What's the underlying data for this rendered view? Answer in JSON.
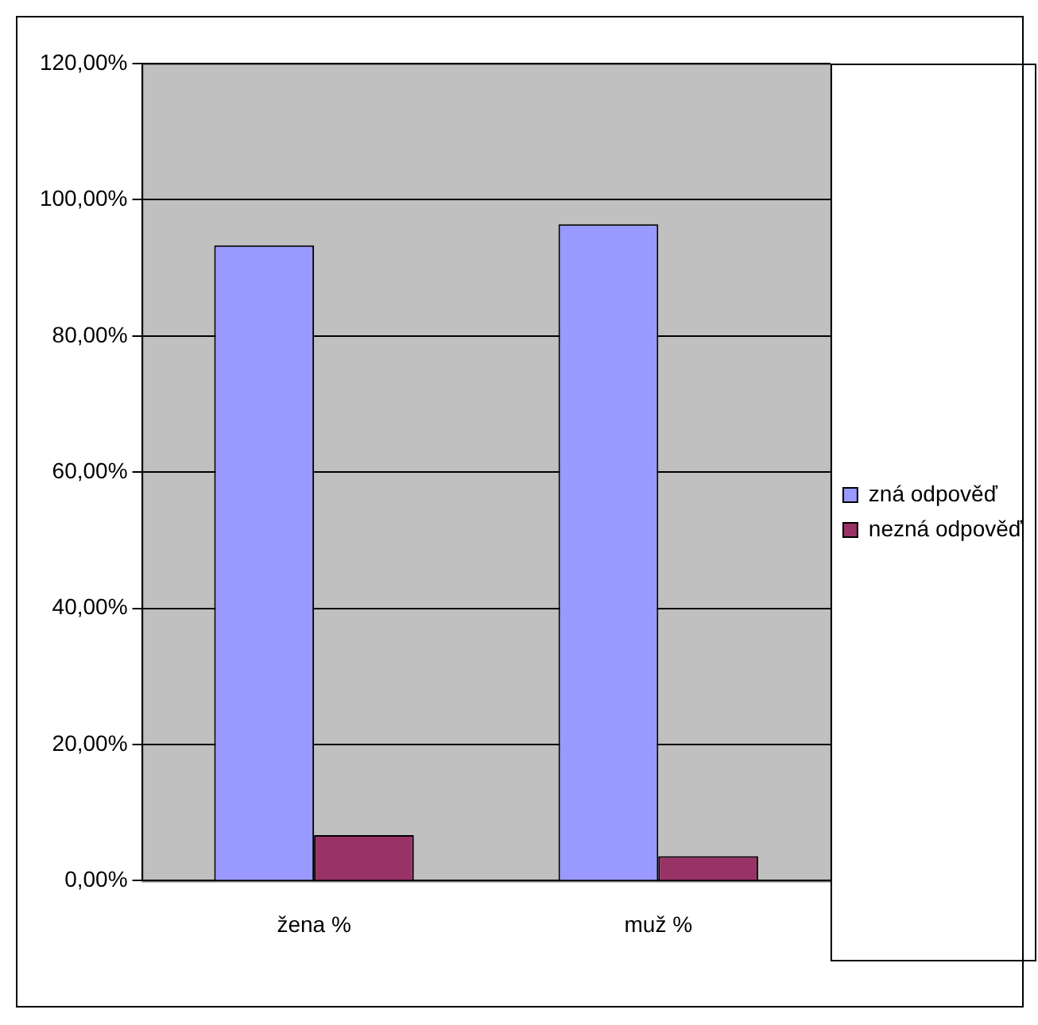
{
  "chart_data": {
    "type": "bar",
    "categories": [
      "žena %",
      "muž %"
    ],
    "series": [
      {
        "name": "zná odpověď",
        "color": "#9999ff",
        "values": [
          93.3,
          96.4
        ]
      },
      {
        "name": "nezná odpověď",
        "color": "#993366",
        "values": [
          6.7,
          3.6
        ]
      }
    ],
    "ylim": [
      0,
      120
    ],
    "yticks": [
      {
        "value": 0,
        "label": "0,00%"
      },
      {
        "value": 20,
        "label": "20,00%"
      },
      {
        "value": 40,
        "label": "40,00%"
      },
      {
        "value": 60,
        "label": "60,00%"
      },
      {
        "value": 80,
        "label": "80,00%"
      },
      {
        "value": 100,
        "label": "100,00%"
      },
      {
        "value": 120,
        "label": "120,00%"
      }
    ],
    "grid": "y",
    "legend": "right"
  }
}
